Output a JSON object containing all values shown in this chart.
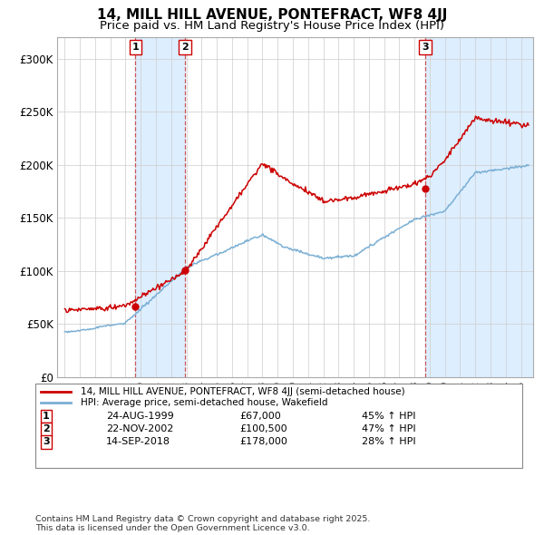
{
  "title": "14, MILL HILL AVENUE, PONTEFRACT, WF8 4JJ",
  "subtitle": "Price paid vs. HM Land Registry's House Price Index (HPI)",
  "ylim": [
    0,
    320000
  ],
  "yticks": [
    0,
    50000,
    100000,
    150000,
    200000,
    250000,
    300000
  ],
  "ytick_labels": [
    "£0",
    "£50K",
    "£100K",
    "£150K",
    "£200K",
    "£250K",
    "£300K"
  ],
  "xlim_start": 1994.5,
  "xlim_end": 2025.8,
  "sale1": {
    "date": 1999.65,
    "price": 67000,
    "label": "1",
    "hpi_pct": "45% ↑ HPI",
    "date_str": "24-AUG-1999",
    "price_str": "£67,000"
  },
  "sale2": {
    "date": 2002.9,
    "price": 100500,
    "label": "2",
    "hpi_pct": "47% ↑ HPI",
    "date_str": "22-NOV-2002",
    "price_str": "£100,500"
  },
  "sale3": {
    "date": 2018.71,
    "price": 178000,
    "label": "3",
    "hpi_pct": "28% ↑ HPI",
    "date_str": "14-SEP-2018",
    "price_str": "£178,000"
  },
  "line_color_red": "#cc0000",
  "line_color_blue": "#7aafd4",
  "shading_color": "#ddeeff",
  "vline_color": "#cc4444",
  "background_color": "#ffffff",
  "grid_color": "#cccccc",
  "legend_label_red": "14, MILL HILL AVENUE, PONTEFRACT, WF8 4JJ (semi-detached house)",
  "legend_label_blue": "HPI: Average price, semi-detached house, Wakefield",
  "footer": "Contains HM Land Registry data © Crown copyright and database right 2025.\nThis data is licensed under the Open Government Licence v3.0.",
  "title_fontsize": 11,
  "subtitle_fontsize": 9.5
}
